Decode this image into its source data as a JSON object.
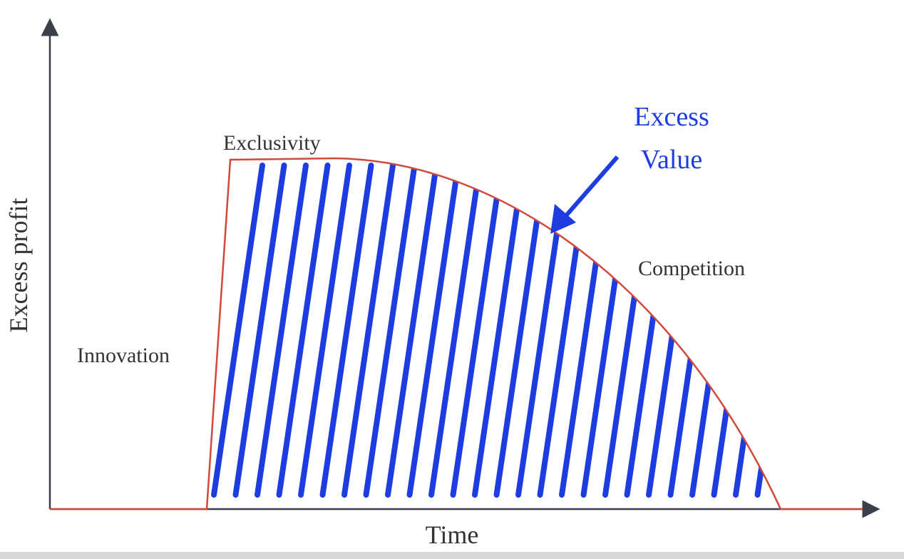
{
  "axes": {
    "y_label": "Excess profit",
    "x_label": "Time"
  },
  "phases": {
    "innovation": "Innovation",
    "exclusivity": "Exclusivity",
    "competition": "Competition"
  },
  "highlight": {
    "lines": [
      "Excess",
      "Value"
    ]
  }
}
